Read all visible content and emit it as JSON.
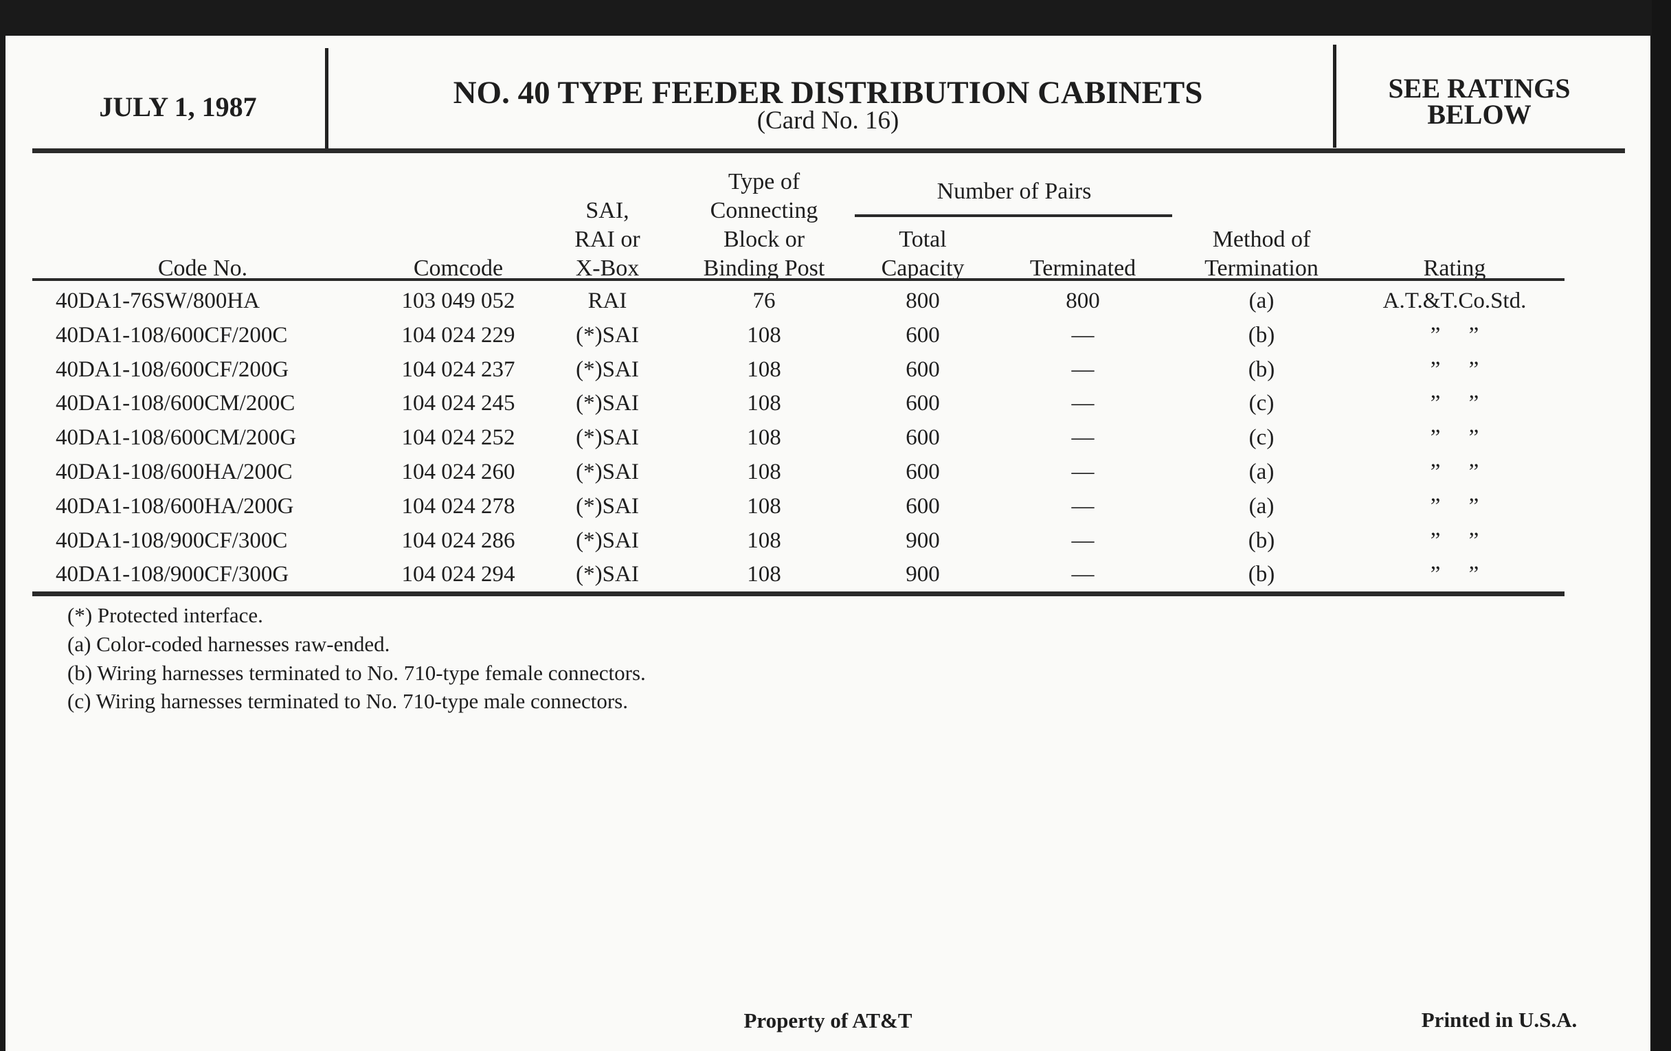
{
  "header": {
    "date": "JULY 1, 1987",
    "title": "NO. 40 TYPE FEEDER DISTRIBUTION CABINETS",
    "subtitle": "(Card No. 16)",
    "rating_note_line1": "SEE RATINGS",
    "rating_note_line2": "BELOW"
  },
  "table": {
    "group_header": "Number of Pairs",
    "columns": {
      "code_no": "Code No.",
      "comcode": "Comcode",
      "sai_l1": "SAI,",
      "sai_l2": "RAI or",
      "sai_l3": "X-Box",
      "type_l1": "Type of",
      "type_l2": "Connecting",
      "type_l3": "Block or",
      "type_l4": "Binding Post",
      "total_l1": "Total",
      "total_l2": "Capacity",
      "terminated": "Terminated",
      "method_l1": "Method of",
      "method_l2": "Termination",
      "rating": "Rating"
    },
    "rows": [
      {
        "code": "40DA1-76SW/800HA",
        "comcode": "103 049 052",
        "sai": "RAI",
        "type": "76",
        "total": "800",
        "terminated": "800",
        "method": "(a)",
        "rating": "A.T.&T.Co.Std."
      },
      {
        "code": "40DA1-108/600CF/200C",
        "comcode": "104 024 229",
        "sai": "(*)SAI",
        "type": "108",
        "total": "600",
        "terminated": "—",
        "method": "(b)",
        "rating": "”     ”"
      },
      {
        "code": "40DA1-108/600CF/200G",
        "comcode": "104 024 237",
        "sai": "(*)SAI",
        "type": "108",
        "total": "600",
        "terminated": "—",
        "method": "(b)",
        "rating": "”     ”"
      },
      {
        "code": "40DA1-108/600CM/200C",
        "comcode": "104 024 245",
        "sai": "(*)SAI",
        "type": "108",
        "total": "600",
        "terminated": "—",
        "method": "(c)",
        "rating": "”     ”"
      },
      {
        "code": "40DA1-108/600CM/200G",
        "comcode": "104 024 252",
        "sai": "(*)SAI",
        "type": "108",
        "total": "600",
        "terminated": "—",
        "method": "(c)",
        "rating": "”     ”"
      },
      {
        "code": "40DA1-108/600HA/200C",
        "comcode": "104 024 260",
        "sai": "(*)SAI",
        "type": "108",
        "total": "600",
        "terminated": "—",
        "method": "(a)",
        "rating": "”     ”"
      },
      {
        "code": "40DA1-108/600HA/200G",
        "comcode": "104 024 278",
        "sai": "(*)SAI",
        "type": "108",
        "total": "600",
        "terminated": "—",
        "method": "(a)",
        "rating": "”     ”"
      },
      {
        "code": "40DA1-108/900CF/300C",
        "comcode": "104 024 286",
        "sai": "(*)SAI",
        "type": "108",
        "total": "900",
        "terminated": "—",
        "method": "(b)",
        "rating": "”     ”"
      },
      {
        "code": "40DA1-108/900CF/300G",
        "comcode": "104 024 294",
        "sai": "(*)SAI",
        "type": "108",
        "total": "900",
        "terminated": "—",
        "method": "(b)",
        "rating": "”     ”"
      }
    ]
  },
  "footnotes": [
    "(*) Protected interface.",
    "(a) Color-coded harnesses raw-ended.",
    "(b) Wiring harnesses terminated to No. 710-type female connectors.",
    "(c) Wiring harnesses terminated to No. 710-type male connectors."
  ],
  "footer": {
    "property": "Property of AT&T",
    "printed": "Printed in U.S.A."
  }
}
